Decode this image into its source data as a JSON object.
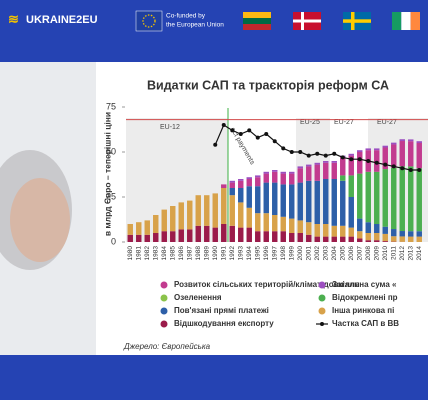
{
  "header": {
    "brand": "UKRAINE2EU",
    "eu_line1": "Co-funded by",
    "eu_line2": "the European Union"
  },
  "chart_data": {
    "type": "stacked_bar",
    "title": "Видатки САП та траєкторія реформ СА",
    "ylabel": "в млрд Євро – теперішні ціни",
    "source": "Джерело: Європейська",
    "annotations": [
      "EU-12",
      "EU-25",
      "EU-27",
      "EU-27",
      "ect payments"
    ],
    "categories": [
      "1980",
      "1981",
      "1982",
      "1983",
      "1984",
      "1985",
      "1986",
      "1987",
      "1988",
      "1989",
      "1990",
      "1991",
      "1992",
      "1993",
      "1994",
      "1995",
      "1996",
      "1997",
      "1998",
      "1999",
      "2000",
      "2001",
      "2002",
      "2003",
      "2004",
      "2005",
      "2006",
      "2007",
      "2008",
      "2009",
      "2010",
      "2011",
      "2012",
      "2013",
      "2014"
    ],
    "ylim": [
      0,
      75
    ],
    "yticks": [
      0,
      25,
      50,
      75
    ],
    "grid": false,
    "reference_line": {
      "value": 68,
      "color": "#d24a4a"
    },
    "series": [
      {
        "name": "Відшкодування експорту",
        "color": "#9b1b4a",
        "values": [
          4,
          4,
          4,
          5,
          6,
          6,
          7,
          7,
          9,
          9,
          8,
          10,
          9,
          8,
          8,
          6,
          6,
          6,
          6,
          5,
          5,
          4,
          3,
          3,
          3,
          3,
          3,
          2,
          1,
          1,
          0.5,
          0.2,
          0.1,
          0,
          0
        ]
      },
      {
        "name": "Інша ринкова пі",
        "color": "#d8a24a",
        "values": [
          6,
          7,
          8,
          10,
          12,
          14,
          15,
          16,
          17,
          17,
          19,
          20,
          17,
          14,
          11,
          10,
          10,
          9,
          8,
          8,
          7,
          7,
          7,
          7,
          6,
          6,
          5,
          4,
          4,
          4,
          4,
          3,
          3,
          3,
          3
        ]
      },
      {
        "name": "Пов'язані прямі платежі",
        "color": "#2d5fa8",
        "values": [
          0,
          0,
          0,
          0,
          0,
          0,
          0,
          0,
          0,
          0,
          0,
          0,
          4,
          8,
          12,
          15,
          17,
          18,
          18,
          19,
          21,
          23,
          24,
          25,
          26,
          25,
          17,
          7,
          6,
          5,
          4,
          4,
          3,
          3,
          3
        ]
      },
      {
        "name": "Відокремлені пр",
        "color": "#4caf50",
        "values": [
          0,
          0,
          0,
          0,
          0,
          0,
          0,
          0,
          0,
          0,
          0,
          0,
          0,
          0,
          0,
          0,
          0,
          0,
          0,
          0,
          0,
          0,
          0,
          0,
          0,
          3,
          12,
          25,
          28,
          29,
          32,
          34,
          36,
          36,
          35
        ]
      },
      {
        "name": "Озеленення",
        "color": "#8bc34a",
        "values": [
          0,
          0,
          0,
          0,
          0,
          0,
          0,
          0,
          0,
          0,
          0,
          0,
          0,
          0,
          0,
          0,
          0,
          0,
          0,
          0,
          0,
          0,
          0,
          0,
          0,
          0,
          0,
          0,
          0,
          0,
          0,
          0,
          0,
          0,
          0
        ]
      },
      {
        "name": "Розвиток сільських територій/клімат-довкілля",
        "color": "#c23b8f",
        "values": [
          0,
          0,
          0,
          0,
          0,
          0,
          0,
          0,
          0,
          0,
          0,
          2,
          3,
          4,
          4,
          5,
          5,
          6,
          6,
          6,
          8,
          8,
          9,
          9,
          9,
          10,
          11,
          12,
          12,
          12,
          12,
          13,
          14,
          14,
          14
        ]
      },
      {
        "name": "Загальна сума «",
        "color": "#9c4fc0",
        "values": [
          0,
          0,
          0,
          0,
          0,
          0,
          0,
          0,
          0,
          0,
          0,
          0,
          1,
          1,
          1,
          1,
          1,
          1,
          1,
          1,
          1,
          1,
          1,
          1,
          1,
          1,
          1,
          1,
          1,
          1,
          1,
          1,
          1,
          1,
          1
        ]
      },
      {
        "name": "Частка САП в ВВ",
        "color": "#111111",
        "kind": "line",
        "values": [
          null,
          null,
          null,
          null,
          null,
          null,
          null,
          null,
          null,
          null,
          54,
          65,
          62,
          60,
          62,
          58,
          60,
          56,
          52,
          50,
          50,
          48,
          49,
          48,
          49,
          47,
          46,
          46,
          45,
          44,
          43,
          42,
          41,
          40,
          40
        ]
      }
    ]
  }
}
